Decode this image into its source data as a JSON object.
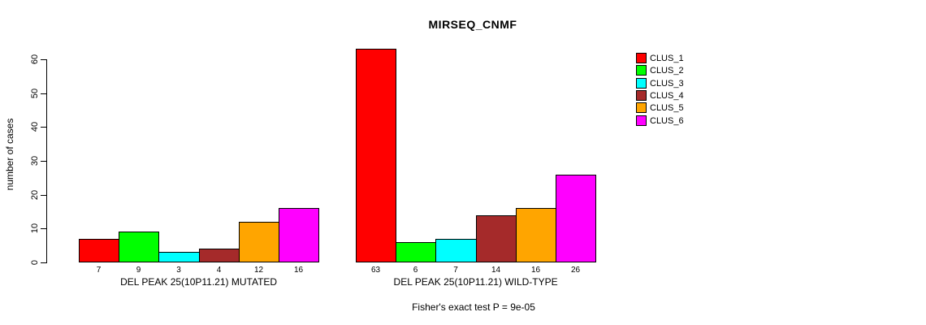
{
  "chart_data": {
    "type": "bar",
    "title": "MIRSEQ_CNMF",
    "ylabel": "number of cases",
    "ylim": [
      0,
      60
    ],
    "yticks": [
      0,
      10,
      20,
      30,
      40,
      50,
      60
    ],
    "grid": false,
    "legend_position": "right",
    "series": [
      {
        "name": "CLUS_1",
        "color": "#FF0000"
      },
      {
        "name": "CLUS_2",
        "color": "#00FF00"
      },
      {
        "name": "CLUS_3",
        "color": "#00FFFF"
      },
      {
        "name": "CLUS_4",
        "color": "#A52A2A"
      },
      {
        "name": "CLUS_5",
        "color": "#FFA500"
      },
      {
        "name": "CLUS_6",
        "color": "#FF00FF"
      }
    ],
    "groups": [
      {
        "label": "DEL PEAK 25(10P11.21) MUTATED",
        "values": [
          7,
          9,
          3,
          4,
          12,
          16
        ]
      },
      {
        "label": "DEL PEAK 25(10P11.21) WILD-TYPE",
        "values": [
          63,
          6,
          7,
          14,
          16,
          26
        ]
      }
    ],
    "footnote": "Fisher's exact test P = 9e-05"
  }
}
